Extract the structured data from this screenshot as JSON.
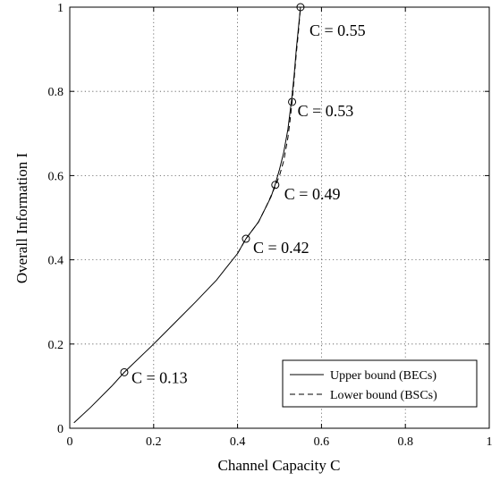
{
  "chart_data": {
    "type": "line",
    "title": "",
    "xlabel": "Channel Capacity C",
    "ylabel": "Overall Information I",
    "xlim": [
      0,
      1
    ],
    "ylim": [
      0,
      1
    ],
    "xticks": [
      0,
      0.2,
      0.4,
      0.6,
      0.8,
      1
    ],
    "yticks": [
      0,
      0.2,
      0.4,
      0.6,
      0.8,
      1
    ],
    "xtick_labels": [
      "0",
      "0.2",
      "0.4",
      "0.6",
      "0.8",
      "1"
    ],
    "ytick_labels": [
      "0",
      "0.2",
      "0.4",
      "0.6",
      "0.8",
      "1"
    ],
    "grid": true,
    "legend_position": "bottom-right",
    "series": [
      {
        "name": "Upper bound (BECs)",
        "line_style": "solid",
        "x": [
          0.01,
          0.05,
          0.1,
          0.13,
          0.2,
          0.25,
          0.3,
          0.35,
          0.38,
          0.4,
          0.42,
          0.45,
          0.48,
          0.49,
          0.5,
          0.51,
          0.52,
          0.525,
          0.53,
          0.535,
          0.54,
          0.545,
          0.55
        ],
        "y": [
          0.013,
          0.05,
          0.1,
          0.133,
          0.2,
          0.25,
          0.3,
          0.352,
          0.39,
          0.415,
          0.45,
          0.49,
          0.55,
          0.58,
          0.615,
          0.655,
          0.71,
          0.75,
          0.79,
          0.84,
          0.9,
          0.95,
          1.0
        ]
      },
      {
        "name": "Lower bound (BSCs)",
        "line_style": "dashed",
        "x": [
          0.4,
          0.42,
          0.45,
          0.47,
          0.49,
          0.5,
          0.51,
          0.52,
          0.525,
          0.53,
          0.535,
          0.54,
          0.545,
          0.55
        ],
        "y": [
          0.415,
          0.45,
          0.49,
          0.53,
          0.575,
          0.6,
          0.635,
          0.69,
          0.73,
          0.775,
          0.83,
          0.89,
          0.94,
          1.0
        ]
      }
    ],
    "markers": [
      {
        "x": 0.13,
        "y": 0.133,
        "label": "C = 0.13"
      },
      {
        "x": 0.42,
        "y": 0.45,
        "label": "C = 0.42"
      },
      {
        "x": 0.49,
        "y": 0.578,
        "label": "C = 0.49"
      },
      {
        "x": 0.53,
        "y": 0.775,
        "label": "C = 0.53"
      },
      {
        "x": 0.55,
        "y": 1.0,
        "label": "C = 0.55"
      }
    ]
  }
}
